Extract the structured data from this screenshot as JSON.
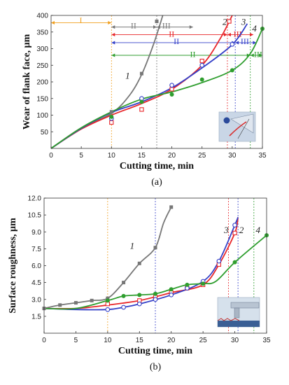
{
  "colors": {
    "gray": "#777777",
    "red": "#e8262a",
    "blue": "#3440c8",
    "green": "#2f9e2f",
    "orange": "#f0a020",
    "dark": "#222222"
  },
  "chart_data": [
    {
      "type": "scatter",
      "panel_label": "(a)",
      "xlabel": "Cutting time, min",
      "ylabel": "Wear of flank face, µm",
      "xlim": [
        0,
        35
      ],
      "ylim": [
        0,
        400
      ],
      "xticks": [
        "0",
        "5",
        "10",
        "15",
        "20",
        "25",
        "30",
        "35"
      ],
      "yticks": [
        "50",
        "100",
        "150",
        "200",
        "250",
        "300",
        "350",
        "400"
      ],
      "series": [
        {
          "name": "1",
          "color": "gray",
          "marker": "square-filled",
          "points": [
            [
              10,
              110
            ],
            [
              15,
              225
            ],
            [
              17.5,
              382
            ]
          ],
          "curve": [
            [
              0,
              0
            ],
            [
              5,
              62
            ],
            [
              10,
              105
            ],
            [
              13,
              160
            ],
            [
              15,
              222
            ],
            [
              17,
              315
            ],
            [
              18.5,
              400
            ]
          ]
        },
        {
          "name": "2",
          "color": "red",
          "marker": "square-open",
          "points": [
            [
              10,
              78
            ],
            [
              15,
              117
            ],
            [
              20,
              178
            ],
            [
              25,
              263
            ],
            [
              29.5,
              382
            ]
          ],
          "curve": [
            [
              0,
              0
            ],
            [
              5,
              58
            ],
            [
              10,
              100
            ],
            [
              15,
              135
            ],
            [
              20,
              178
            ],
            [
              25,
              250
            ],
            [
              28,
              330
            ],
            [
              30,
              400
            ]
          ]
        },
        {
          "name": "3",
          "color": "blue",
          "marker": "circle-open",
          "points": [
            [
              10,
              90
            ],
            [
              15,
              150
            ],
            [
              20,
              190
            ],
            [
              25,
              250
            ],
            [
              30,
              313
            ]
          ],
          "curve": [
            [
              0,
              0
            ],
            [
              5,
              60
            ],
            [
              10,
              108
            ],
            [
              15,
              140
            ],
            [
              20,
              182
            ],
            [
              25,
              242
            ],
            [
              30,
              312
            ],
            [
              32.5,
              375
            ]
          ]
        },
        {
          "name": "4",
          "color": "green",
          "marker": "circle-filled",
          "points": [
            [
              10,
              95
            ],
            [
              15,
              140
            ],
            [
              20,
              162
            ],
            [
              25,
              207
            ],
            [
              30,
              235
            ],
            [
              35,
              360
            ]
          ],
          "curve": [
            [
              0,
              0
            ],
            [
              5,
              62
            ],
            [
              10,
              110
            ],
            [
              15,
              148
            ],
            [
              20,
              170
            ],
            [
              25,
              198
            ],
            [
              30,
              235
            ],
            [
              33,
              285
            ],
            [
              35,
              360
            ]
          ]
        }
      ],
      "vlines": [
        {
          "x": 10,
          "color": "orange"
        },
        {
          "x": 17.5,
          "color": "gray"
        },
        {
          "x": 29.2,
          "color": "red"
        },
        {
          "x": 30.5,
          "color": "blue"
        },
        {
          "x": 33,
          "color": "green"
        }
      ],
      "zones": [
        {
          "label": "I",
          "x1": 0,
          "x2": 10,
          "y": 378,
          "color": "orange",
          "lx": 4.7,
          "ly": 385
        },
        {
          "label": "II",
          "x1": 10,
          "x2": 17.5,
          "y": 365,
          "color": "gray",
          "lx": 13.2,
          "ly": 369
        },
        {
          "label": "III",
          "x1": 17.5,
          "x2": 23.5,
          "y": 365,
          "color": "gray",
          "lx": 18.4,
          "ly": 369
        },
        {
          "label": "II",
          "x1": 10,
          "x2": 29.2,
          "y": 342,
          "color": "red",
          "lx": 19.5,
          "ly": 344
        },
        {
          "label": "III",
          "x1": 29.2,
          "x2": 33.5,
          "y": 342,
          "color": "red",
          "lx": 30.2,
          "ly": 344
        },
        {
          "label": "II",
          "x1": 10,
          "x2": 30.5,
          "y": 318,
          "color": "blue",
          "lx": 20.3,
          "ly": 322
        },
        {
          "label": "III",
          "x1": 30.5,
          "x2": 34,
          "y": 318,
          "color": "blue",
          "lx": 31.4,
          "ly": 322
        },
        {
          "label": "II",
          "x1": 10,
          "x2": 33,
          "y": 280,
          "color": "green",
          "lx": 23,
          "ly": 283
        },
        {
          "label": "III",
          "x1": 33,
          "x2": 35,
          "y": 280,
          "color": "green",
          "lx": 33.6,
          "ly": 283
        }
      ],
      "curve_labels": [
        {
          "text": "1",
          "x": 12.3,
          "y": 210,
          "color": "dark"
        },
        {
          "text": "2",
          "x": 28.4,
          "y": 372,
          "color": "dark"
        },
        {
          "text": "3",
          "x": 31.5,
          "y": 372,
          "color": "dark"
        },
        {
          "text": "4",
          "x": 33.3,
          "y": 352,
          "color": "dark"
        }
      ]
    },
    {
      "type": "scatter",
      "panel_label": "(b)",
      "xlabel": "Cutting time, min",
      "ylabel": "Surface roughness, µm",
      "xlim": [
        0,
        35
      ],
      "ylim": [
        0,
        12
      ],
      "xticks": [
        "0",
        "5",
        "10",
        "15",
        "20",
        "25",
        "30",
        "35"
      ],
      "yticks": [
        "1.5",
        "3.0",
        "4.5",
        "6.0",
        "7.5",
        "9.0",
        "10.5",
        "12.0"
      ],
      "series": [
        {
          "name": "1",
          "color": "gray",
          "marker": "square-filled",
          "points": [
            [
              0,
              2.2
            ],
            [
              2.5,
              2.5
            ],
            [
              5,
              2.7
            ],
            [
              7.5,
              2.9
            ],
            [
              10,
              3.1
            ],
            [
              12.5,
              4.5
            ],
            [
              15,
              6.2
            ],
            [
              17.5,
              7.6
            ],
            [
              20,
              11.2
            ]
          ],
          "curve": [
            [
              0,
              2.2
            ],
            [
              2.5,
              2.5
            ],
            [
              5,
              2.7
            ],
            [
              7.5,
              2.9
            ],
            [
              10,
              3.1
            ],
            [
              12.5,
              4.5
            ],
            [
              15,
              6.2
            ],
            [
              17.5,
              7.6
            ],
            [
              18.8,
              9.8
            ],
            [
              20,
              11.2
            ]
          ]
        },
        {
          "name": "2",
          "color": "red",
          "marker": "square-open",
          "points": [
            [
              10,
              2.6
            ],
            [
              15,
              2.9
            ],
            [
              17.5,
              3.2
            ],
            [
              20,
              3.6
            ],
            [
              22.5,
              4.0
            ],
            [
              25,
              4.3
            ],
            [
              27.5,
              6.1
            ],
            [
              30,
              8.9
            ]
          ],
          "curve": [
            [
              0,
              2.2
            ],
            [
              5,
              2.2
            ],
            [
              10,
              2.5
            ],
            [
              15,
              2.9
            ],
            [
              20,
              3.6
            ],
            [
              25,
              4.3
            ],
            [
              27.5,
              6.1
            ],
            [
              30,
              8.9
            ],
            [
              30.5,
              10.3
            ]
          ]
        },
        {
          "name": "3",
          "color": "blue",
          "marker": "circle-open",
          "points": [
            [
              10,
              2.1
            ],
            [
              12.5,
              2.3
            ],
            [
              15,
              2.6
            ],
            [
              17.5,
              3.0
            ],
            [
              20,
              3.4
            ],
            [
              22.5,
              4.0
            ],
            [
              25,
              4.6
            ],
            [
              27.5,
              6.4
            ],
            [
              30,
              9.6
            ]
          ],
          "curve": [
            [
              0,
              2.2
            ],
            [
              5,
              2.1
            ],
            [
              10,
              2.1
            ],
            [
              12.5,
              2.3
            ],
            [
              15,
              2.6
            ],
            [
              20,
              3.4
            ],
            [
              25,
              4.6
            ],
            [
              27.5,
              6.4
            ],
            [
              30,
              9.6
            ],
            [
              30.5,
              10.3
            ]
          ]
        },
        {
          "name": "4",
          "color": "green",
          "marker": "circle-filled",
          "points": [
            [
              10,
              2.9
            ],
            [
              12.5,
              3.3
            ],
            [
              15,
              3.4
            ],
            [
              17.5,
              3.5
            ],
            [
              20,
              3.9
            ],
            [
              22.5,
              4.3
            ],
            [
              25,
              4.4
            ],
            [
              30,
              6.3
            ],
            [
              35,
              8.7
            ]
          ],
          "curve": [
            [
              0,
              2.2
            ],
            [
              5,
              2.2
            ],
            [
              10,
              2.9
            ],
            [
              12.5,
              3.3
            ],
            [
              15,
              3.4
            ],
            [
              17.5,
              3.5
            ],
            [
              20,
              3.9
            ],
            [
              22.5,
              4.3
            ],
            [
              25,
              4.4
            ],
            [
              27,
              4.6
            ],
            [
              30,
              6.3
            ],
            [
              35,
              8.7
            ]
          ]
        }
      ],
      "vlines": [
        {
          "x": 10,
          "color": "orange"
        },
        {
          "x": 17.5,
          "color": "blue"
        },
        {
          "x": 29,
          "color": "red"
        },
        {
          "x": 30.5,
          "color": "blue"
        },
        {
          "x": 33,
          "color": "green"
        }
      ],
      "zones": [],
      "curve_labels": [
        {
          "text": "1",
          "x": 13.5,
          "y": 7.5,
          "color": "dark"
        },
        {
          "text": "3",
          "x": 28.3,
          "y": 8.9,
          "color": "dark"
        },
        {
          "text": "2",
          "x": 30.7,
          "y": 8.9,
          "color": "dark"
        },
        {
          "text": "4",
          "x": 33.3,
          "y": 8.9,
          "color": "dark"
        }
      ]
    }
  ]
}
